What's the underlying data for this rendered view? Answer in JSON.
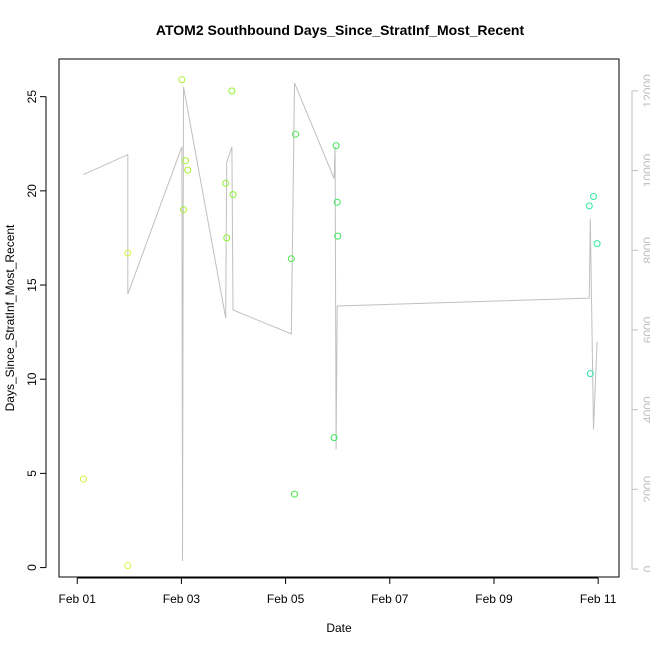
{
  "chart_data": {
    "type": "scatter",
    "title": "ATOM2 Southbound Days_Since_StratInf_Most_Recent",
    "xlabel": "Date",
    "ylabel": "Days_Since_StratInf_Most_Recent",
    "x_ticks": [
      "Feb 01",
      "Feb 03",
      "Feb 05",
      "Feb 07",
      "Feb 09",
      "Feb 11"
    ],
    "x_tick_values": [
      0,
      2,
      4,
      6,
      8,
      10
    ],
    "xlim": [
      -0.35,
      10.4
    ],
    "y_ticks": [
      0,
      5,
      10,
      15,
      20,
      25
    ],
    "ylim": [
      -0.5,
      27
    ],
    "y2_ticks": [
      0,
      2000,
      4000,
      6000,
      8000,
      10000,
      12000
    ],
    "y2lim": [
      -200,
      12800
    ],
    "colors": {
      "line": "#c0c0c0",
      "axis": "#000000",
      "axis_right": "#bfbfbf"
    },
    "series": [
      {
        "type": "points",
        "points": [
          {
            "x": 0.12,
            "y": 4.7,
            "color": "#d4f542"
          },
          {
            "x": 0.97,
            "y": 0.1,
            "color": "#d4f542"
          },
          {
            "x": 0.97,
            "y": 16.7,
            "color": "#d4f542"
          },
          {
            "x": 2.01,
            "y": 25.9,
            "color": "#a8f230"
          },
          {
            "x": 2.04,
            "y": 19.0,
            "color": "#a8f230"
          },
          {
            "x": 2.08,
            "y": 21.6,
            "color": "#a8f230"
          },
          {
            "x": 2.12,
            "y": 21.1,
            "color": "#a8f230"
          },
          {
            "x": 2.85,
            "y": 20.4,
            "color": "#8ef02e"
          },
          {
            "x": 2.87,
            "y": 17.5,
            "color": "#8ef02e"
          },
          {
            "x": 2.97,
            "y": 25.3,
            "color": "#8ef02e"
          },
          {
            "x": 2.99,
            "y": 19.8,
            "color": "#8ef02e"
          },
          {
            "x": 4.11,
            "y": 16.4,
            "color": "#4de84a"
          },
          {
            "x": 4.17,
            "y": 3.9,
            "color": "#4de84a"
          },
          {
            "x": 4.19,
            "y": 23.0,
            "color": "#4de84a"
          },
          {
            "x": 4.93,
            "y": 6.9,
            "color": "#3de85a"
          },
          {
            "x": 4.97,
            "y": 22.4,
            "color": "#3de85a"
          },
          {
            "x": 4.99,
            "y": 19.4,
            "color": "#3de85a"
          },
          {
            "x": 5.0,
            "y": 17.6,
            "color": "#3de85a"
          },
          {
            "x": 9.83,
            "y": 19.2,
            "color": "#2eeaa0"
          },
          {
            "x": 9.85,
            "y": 10.3,
            "color": "#2eeaa0"
          },
          {
            "x": 9.91,
            "y": 19.7,
            "color": "#2eeaa0"
          },
          {
            "x": 9.98,
            "y": 17.2,
            "color": "#2eeaa0"
          }
        ]
      },
      {
        "type": "line",
        "axis": "right",
        "points": [
          {
            "x": 0.12,
            "y": 9900
          },
          {
            "x": 0.97,
            "y": 10400
          },
          {
            "x": 0.97,
            "y": 6900
          },
          {
            "x": 2.01,
            "y": 10600
          },
          {
            "x": 2.02,
            "y": 200
          },
          {
            "x": 2.04,
            "y": 12100
          },
          {
            "x": 2.85,
            "y": 6300
          },
          {
            "x": 2.87,
            "y": 10200
          },
          {
            "x": 2.97,
            "y": 10600
          },
          {
            "x": 2.99,
            "y": 6500
          },
          {
            "x": 4.11,
            "y": 5900
          },
          {
            "x": 4.17,
            "y": 12200
          },
          {
            "x": 4.93,
            "y": 9800
          },
          {
            "x": 4.95,
            "y": 10600
          },
          {
            "x": 4.97,
            "y": 3000
          },
          {
            "x": 4.99,
            "y": 6600
          },
          {
            "x": 9.83,
            "y": 6800
          },
          {
            "x": 9.85,
            "y": 8800
          },
          {
            "x": 9.91,
            "y": 3500
          },
          {
            "x": 9.98,
            "y": 5700
          }
        ]
      }
    ]
  }
}
